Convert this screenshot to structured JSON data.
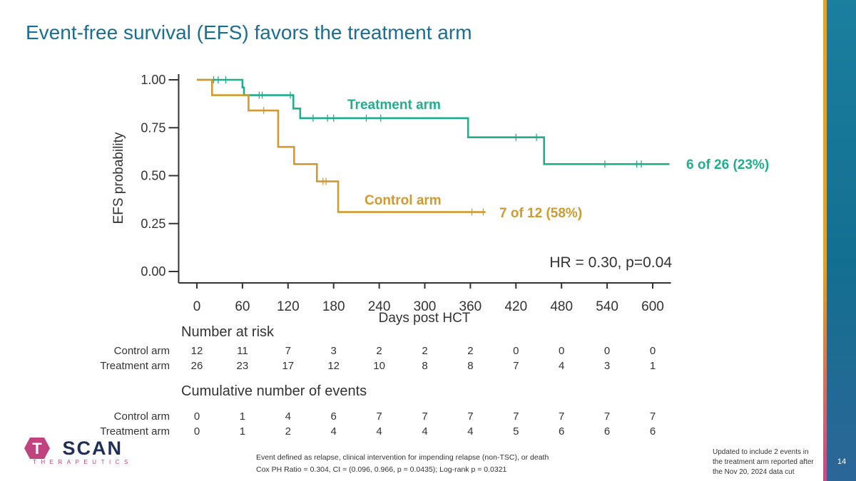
{
  "slide": {
    "title": "Event-free survival (EFS) favors the treatment arm",
    "page_number": "14"
  },
  "colors": {
    "treatment": "#1faf8c",
    "control": "#d29a2e",
    "title": "#1a6e92",
    "axis": "#333333"
  },
  "chart_data": {
    "type": "line",
    "step": true,
    "xlabel": "Days post HCT",
    "ylabel": "EFS probability",
    "xlim": [
      -24,
      624
    ],
    "ylim": [
      0,
      1
    ],
    "x_ticks": [
      0,
      60,
      120,
      180,
      240,
      300,
      360,
      420,
      480,
      540,
      600
    ],
    "y_ticks": [
      0.0,
      0.25,
      0.5,
      0.75,
      1.0
    ],
    "y_tick_labels": [
      "0.00",
      "0.25",
      "0.50",
      "0.75",
      "1.00"
    ],
    "annotation": "HR = 0.30, p=0.04",
    "series": [
      {
        "name": "Treatment arm",
        "key": "treatment",
        "end_label": "6 of 26 (23%)",
        "steps": [
          [
            0,
            1.0
          ],
          [
            60,
            0.96
          ],
          [
            62,
            0.92
          ],
          [
            127,
            0.85
          ],
          [
            136,
            0.8
          ],
          [
            357,
            0.7
          ],
          [
            457,
            0.56
          ],
          [
            622,
            0.56
          ]
        ],
        "censor_x": [
          22,
          28,
          38,
          82,
          86,
          123,
          153,
          172,
          180,
          223,
          242,
          420,
          447,
          537,
          579,
          585
        ]
      },
      {
        "name": "Control arm",
        "key": "control",
        "end_label": "7 of 12 (58%)",
        "steps": [
          [
            0,
            1.0
          ],
          [
            20,
            0.92
          ],
          [
            68,
            0.84
          ],
          [
            107,
            0.65
          ],
          [
            128,
            0.56
          ],
          [
            158,
            0.47
          ],
          [
            186,
            0.31
          ],
          [
            380,
            0.31
          ]
        ],
        "censor_x": [
          88,
          166,
          170,
          362,
          377
        ]
      }
    ]
  },
  "risk_table": {
    "number_at_risk_title": "Number at risk",
    "events_title": "Cumulative number of events",
    "row_labels": [
      "Control arm",
      "Treatment arm"
    ],
    "at_risk": {
      "control": [
        "12",
        "11",
        "7",
        "3",
        "2",
        "2",
        "2",
        "0",
        "0",
        "0",
        "0"
      ],
      "treatment": [
        "26",
        "23",
        "17",
        "12",
        "10",
        "8",
        "8",
        "7",
        "4",
        "3",
        "1"
      ]
    },
    "events": {
      "control": [
        "0",
        "1",
        "4",
        "6",
        "7",
        "7",
        "7",
        "7",
        "7",
        "7",
        "7"
      ],
      "treatment": [
        "0",
        "1",
        "2",
        "4",
        "4",
        "4",
        "4",
        "5",
        "6",
        "6",
        "6"
      ]
    }
  },
  "footnotes": {
    "line1": "Event defined as relapse, clinical intervention for impending relapse (non-TSC), or death",
    "line2": "Cox PH Ratio = 0.304, CI = (0.096, 0.966, p = 0.0435); Log-rank p = 0.0321",
    "update_note": "Updated to include 2 events in the treatment arm reported after the Nov 20, 2024 data cut"
  },
  "logo": {
    "text": "TSCAN",
    "subtitle": "THERAPEUTICS"
  }
}
